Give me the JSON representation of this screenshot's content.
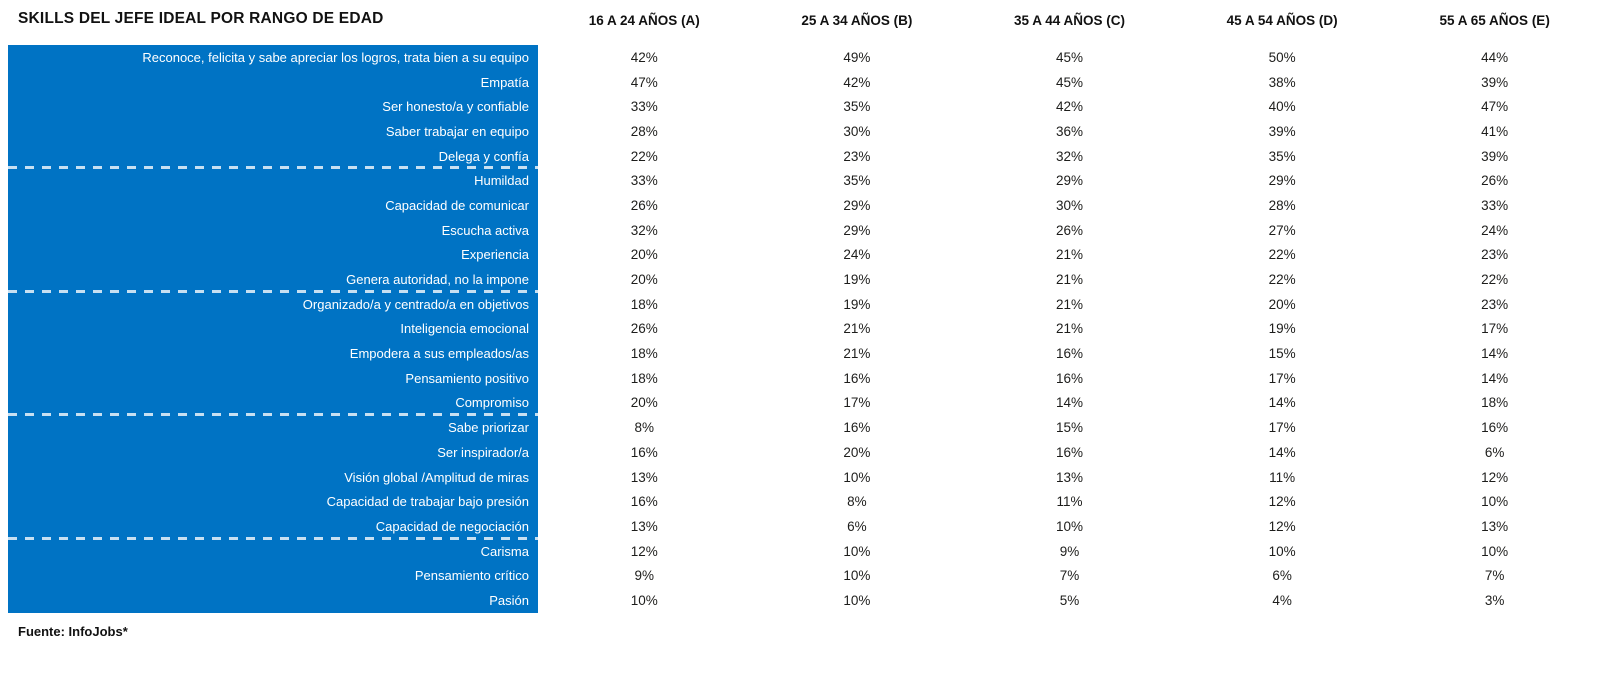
{
  "title": "SKILLS DEL JEFE IDEAL POR RANGO DE EDAD",
  "source_note": "Fuente: InfoJobs*",
  "colors": {
    "accent_blue": "#0073C4",
    "row_label_text": "#FFFFFF",
    "value_text": "#1D1D1B",
    "header_text": "#111111",
    "group_divider": "rgba(255,255,255,0.78)"
  },
  "chart_data": {
    "type": "table",
    "title": "SKILLS DEL JEFE IDEAL POR RANGO DE EDAD",
    "unit": "%",
    "legend_position": "none",
    "grid": "off",
    "columns": [
      "16 A 24 AÑOS (A)",
      "25 A 34 AÑOS (B)",
      "35 A 44 AÑOS (C)",
      "45 A 54 AÑOS (D)",
      "55 A 65 AÑOS (E)"
    ],
    "group_size": 5,
    "rows": [
      {
        "label": "Reconoce, felicita y sabe apreciar los logros, trata bien a su equipo",
        "values": [
          42,
          49,
          45,
          50,
          44
        ]
      },
      {
        "label": "Empatía",
        "values": [
          47,
          42,
          45,
          38,
          39
        ]
      },
      {
        "label": "Ser honesto/a y confiable",
        "values": [
          33,
          35,
          42,
          40,
          47
        ]
      },
      {
        "label": "Saber trabajar en equipo",
        "values": [
          28,
          30,
          36,
          39,
          41
        ]
      },
      {
        "label": "Delega y confía",
        "values": [
          22,
          23,
          32,
          35,
          39
        ]
      },
      {
        "label": "Humildad",
        "values": [
          33,
          35,
          29,
          29,
          26
        ]
      },
      {
        "label": "Capacidad de comunicar",
        "values": [
          26,
          29,
          30,
          28,
          33
        ]
      },
      {
        "label": "Escucha activa",
        "values": [
          32,
          29,
          26,
          27,
          24
        ]
      },
      {
        "label": "Experiencia",
        "values": [
          20,
          24,
          21,
          22,
          23
        ]
      },
      {
        "label": "Genera autoridad, no la impone",
        "values": [
          20,
          19,
          21,
          22,
          22
        ]
      },
      {
        "label": "Organizado/a y centrado/a en objetivos",
        "values": [
          18,
          19,
          21,
          20,
          23
        ]
      },
      {
        "label": "Inteligencia emocional",
        "values": [
          26,
          21,
          21,
          19,
          17
        ]
      },
      {
        "label": "Empodera a sus empleados/as",
        "values": [
          18,
          21,
          16,
          15,
          14
        ]
      },
      {
        "label": "Pensamiento positivo",
        "values": [
          18,
          16,
          16,
          17,
          14
        ]
      },
      {
        "label": "Compromiso",
        "values": [
          20,
          17,
          14,
          14,
          18
        ]
      },
      {
        "label": "Sabe priorizar",
        "values": [
          8,
          16,
          15,
          17,
          16
        ]
      },
      {
        "label": "Ser inspirador/a",
        "values": [
          16,
          20,
          16,
          14,
          6
        ]
      },
      {
        "label": "Visión global /Amplitud de miras",
        "values": [
          13,
          10,
          13,
          11,
          12
        ]
      },
      {
        "label": "Capacidad de trabajar bajo presión",
        "values": [
          16,
          8,
          11,
          12,
          10
        ]
      },
      {
        "label": "Capacidad de negociación",
        "values": [
          13,
          6,
          10,
          12,
          13
        ]
      },
      {
        "label": "Carisma",
        "values": [
          12,
          10,
          9,
          10,
          10
        ]
      },
      {
        "label": "Pensamiento crítico",
        "values": [
          9,
          10,
          7,
          6,
          7
        ]
      },
      {
        "label": "Pasión",
        "values": [
          10,
          10,
          5,
          4,
          3
        ]
      }
    ]
  }
}
